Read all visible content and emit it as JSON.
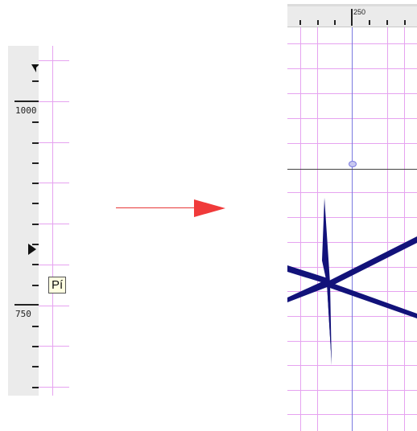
{
  "left_ruler": {
    "label_upper": "1000",
    "label_lower": "750"
  },
  "tooltip": {
    "text": "Pí"
  },
  "top_ruler": {
    "label": "250"
  },
  "colors": {
    "grid": "#e6a3f0",
    "guide": "#7a7ae0",
    "star": "#12127a",
    "arrow": "#f03a3a",
    "ruler_bg": "#ebebeb"
  },
  "icons": {
    "arrow": "right-arrow-icon",
    "star": "star-shape-icon",
    "markers": "ruler-marker-icon"
  }
}
